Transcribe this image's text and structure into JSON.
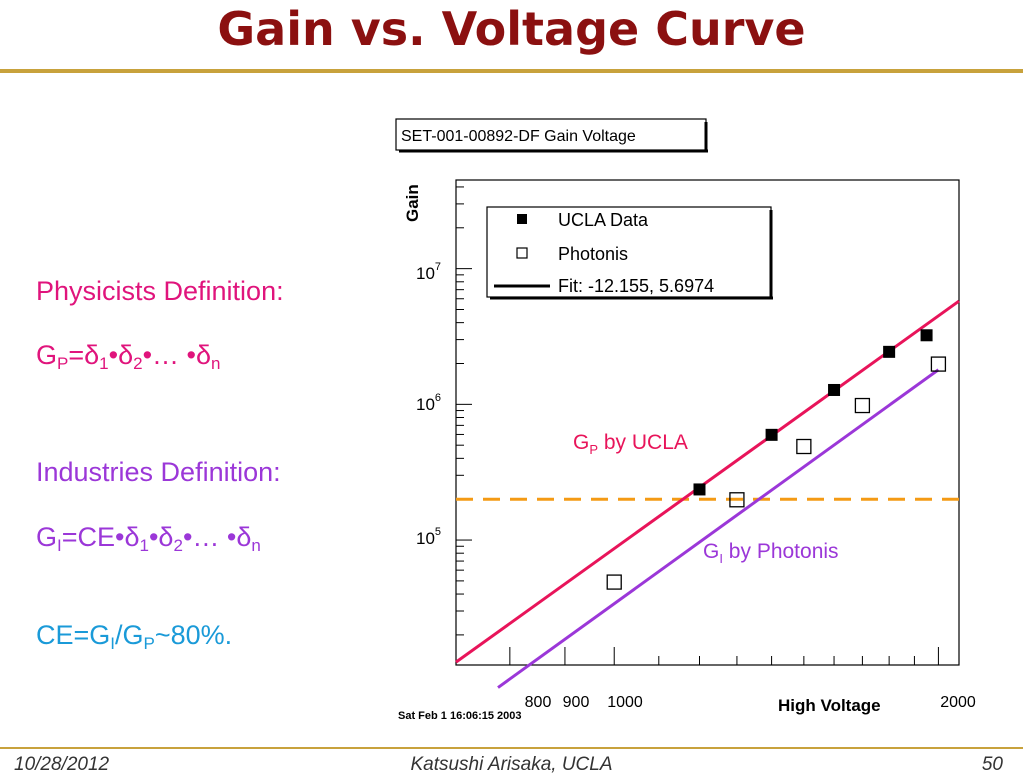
{
  "slide": {
    "title": "Gain vs. Voltage Curve",
    "footer_date": "10/28/2012",
    "footer_author": "Katsushi Arisaka, UCLA",
    "page_number": "50"
  },
  "definitions": {
    "physicists_heading": "Physicists Definition:",
    "industries_heading": "Industries Definition:",
    "colors": {
      "physicists": "#e0147c",
      "industries": "#9b37d8",
      "ce": "#1a9ad8"
    }
  },
  "chart_data": {
    "type": "scatter",
    "title": "SET-001-00892-DF Gain Voltage",
    "timestamp": "Sat Feb  1 16:06:15 2003",
    "xlabel": "High Voltage",
    "ylabel": "Gain",
    "xscale": "log",
    "yscale": "log",
    "xlim": [
      713,
      2090
    ],
    "ylim": [
      12000,
      45000000
    ],
    "x_tick_labels": [
      "800",
      "900",
      "1000",
      "2000"
    ],
    "y_tick_labels": [
      {
        "value": 100000,
        "base": "10",
        "exp": "5"
      },
      {
        "value": 1000000,
        "base": "10",
        "exp": "6"
      },
      {
        "value": 10000000,
        "base": "10",
        "exp": "7"
      }
    ],
    "legend_position": "top-left",
    "series": [
      {
        "name": "UCLA Data",
        "marker": "filled-square",
        "color": "#000000",
        "x": [
          1200,
          1400,
          1600,
          1800,
          1950
        ],
        "y": [
          236000,
          596000,
          1276000,
          2437000,
          3228000
        ]
      },
      {
        "name": "Photonis",
        "marker": "open-square",
        "color": "#000000",
        "x": [
          1000,
          1300,
          1500,
          1700,
          2000
        ],
        "y": [
          49000,
          198000,
          489000,
          980000,
          1980000
        ]
      },
      {
        "name": "Fit: -12.155, 5.6974",
        "type": "line",
        "color": "#e8145a",
        "fit_log10_intercept": -12.155,
        "fit_log10_slope": 5.6974
      },
      {
        "name": "",
        "type": "line",
        "color": "#9b37d8",
        "fit_log10_intercept": -12.65,
        "fit_log10_slope": 5.727
      }
    ],
    "reference_line": {
      "y": 200000,
      "color": "#f49a14",
      "style": "dashed"
    },
    "annotations": [
      {
        "text": "G",
        "sub": "P",
        "suffix": " by UCLA",
        "color": "#e8145a"
      },
      {
        "text": "G",
        "sub": "I",
        "suffix": " by Photonis",
        "color": "#9b37d8"
      }
    ]
  }
}
